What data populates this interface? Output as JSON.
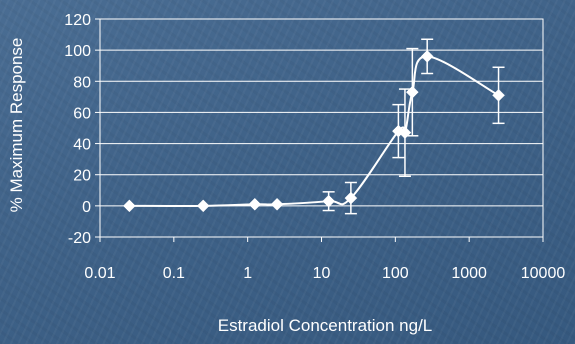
{
  "chart_data": {
    "type": "scatter",
    "title": "",
    "xlabel": "Estradiol Concentration ng/L",
    "ylabel": "% Maximum Response",
    "xscale": "log",
    "xlim": [
      0.01,
      10000
    ],
    "ylim": [
      -20,
      120
    ],
    "xticks": [
      0.01,
      0.1,
      1,
      10,
      100,
      1000,
      10000
    ],
    "xtick_labels": [
      "0.01",
      "0.1",
      "1",
      "10",
      "100",
      "1000",
      "10000"
    ],
    "yticks": [
      -20,
      0,
      20,
      40,
      60,
      80,
      100,
      120
    ],
    "ytick_labels": [
      "-20",
      "0",
      "20",
      "40",
      "60",
      "80",
      "100",
      "120"
    ],
    "grid": "horizontal",
    "series": [
      {
        "marker": "diamond",
        "line": "smooth",
        "color": "#ffffff",
        "points": [
          {
            "x": 0.025,
            "y": 0,
            "err": 0
          },
          {
            "x": 0.25,
            "y": 0,
            "err": 0
          },
          {
            "x": 1.25,
            "y": 1,
            "err": 0
          },
          {
            "x": 2.5,
            "y": 1,
            "err": 0
          },
          {
            "x": 12.5,
            "y": 3,
            "err": 6
          },
          {
            "x": 25,
            "y": 5,
            "err": 10
          },
          {
            "x": 110,
            "y": 48,
            "err": 17
          },
          {
            "x": 135,
            "y": 47,
            "err": 28
          },
          {
            "x": 170,
            "y": 73,
            "err": 28
          },
          {
            "x": 270,
            "y": 96,
            "err": 11
          },
          {
            "x": 2500,
            "y": 71,
            "err": 18
          }
        ]
      }
    ]
  }
}
